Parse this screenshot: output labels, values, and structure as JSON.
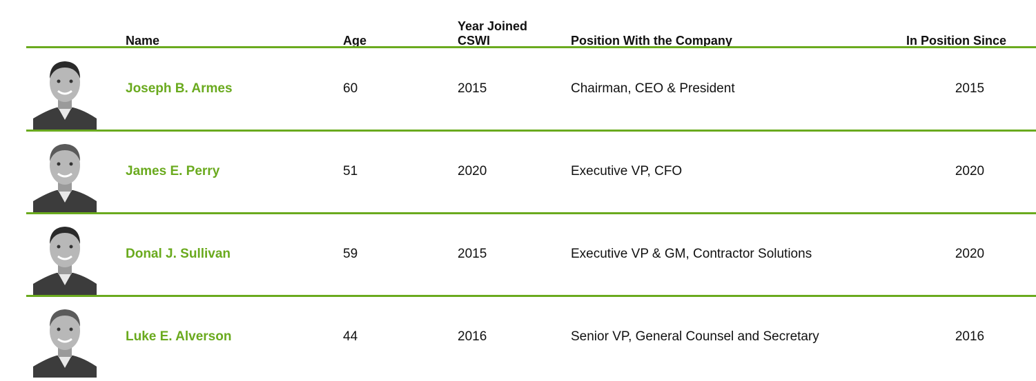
{
  "table": {
    "header": [
      "Name",
      "Age",
      "Year Joined CSWI",
      "Position With the Company",
      "In Position Since"
    ],
    "rows": [
      [
        "Joseph B. Armes",
        60,
        2015,
        "Chairman, CEO & President",
        2015
      ],
      [
        "James E. Perry",
        51,
        2020,
        "Executive VP, CFO",
        2020
      ],
      [
        "Donal J. Sullivan",
        59,
        2015,
        "Executive VP & GM, Contractor Solutions",
        2020
      ],
      [
        "Luke E. Alverson",
        44,
        2016,
        "Senior VP, General Counsel and Secretary",
        2016
      ]
    ]
  }
}
